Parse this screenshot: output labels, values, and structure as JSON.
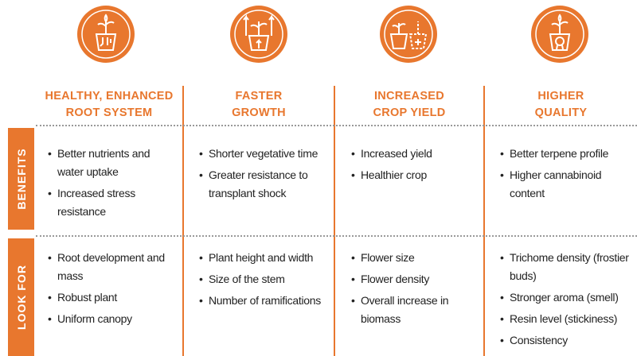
{
  "row_labels": [
    "BENEFITS",
    "LOOK FOR"
  ],
  "columns": [
    {
      "title_lines": [
        "HEALTHY, ENHANCED",
        "ROOT SYSTEM"
      ],
      "benefits": [
        "Better nutrients and water uptake",
        "Increased stress resistance"
      ],
      "look_for": [
        "Root development and mass",
        "Robust plant",
        "Uniform canopy"
      ]
    },
    {
      "title_lines": [
        "FASTER",
        "GROWTH"
      ],
      "benefits": [
        "Shorter vegetative time",
        "Greater resistance to transplant shock"
      ],
      "look_for": [
        "Plant height and width",
        "Size of the stem",
        "Number of ramifications"
      ]
    },
    {
      "title_lines": [
        "INCREASED",
        "CROP YIELD"
      ],
      "benefits": [
        "Increased yield",
        "Healthier crop"
      ],
      "look_for": [
        "Flower size",
        "Flower density",
        "Overall increase in biomass"
      ]
    },
    {
      "title_lines": [
        "HIGHER",
        "QUALITY"
      ],
      "benefits": [
        "Better terpene profile",
        "Higher cannabinoid content"
      ],
      "look_for": [
        "Trichome density (frostier buds)",
        "Stronger aroma (smell)",
        "Resin level (stickiness)",
        "Consistency"
      ]
    }
  ]
}
